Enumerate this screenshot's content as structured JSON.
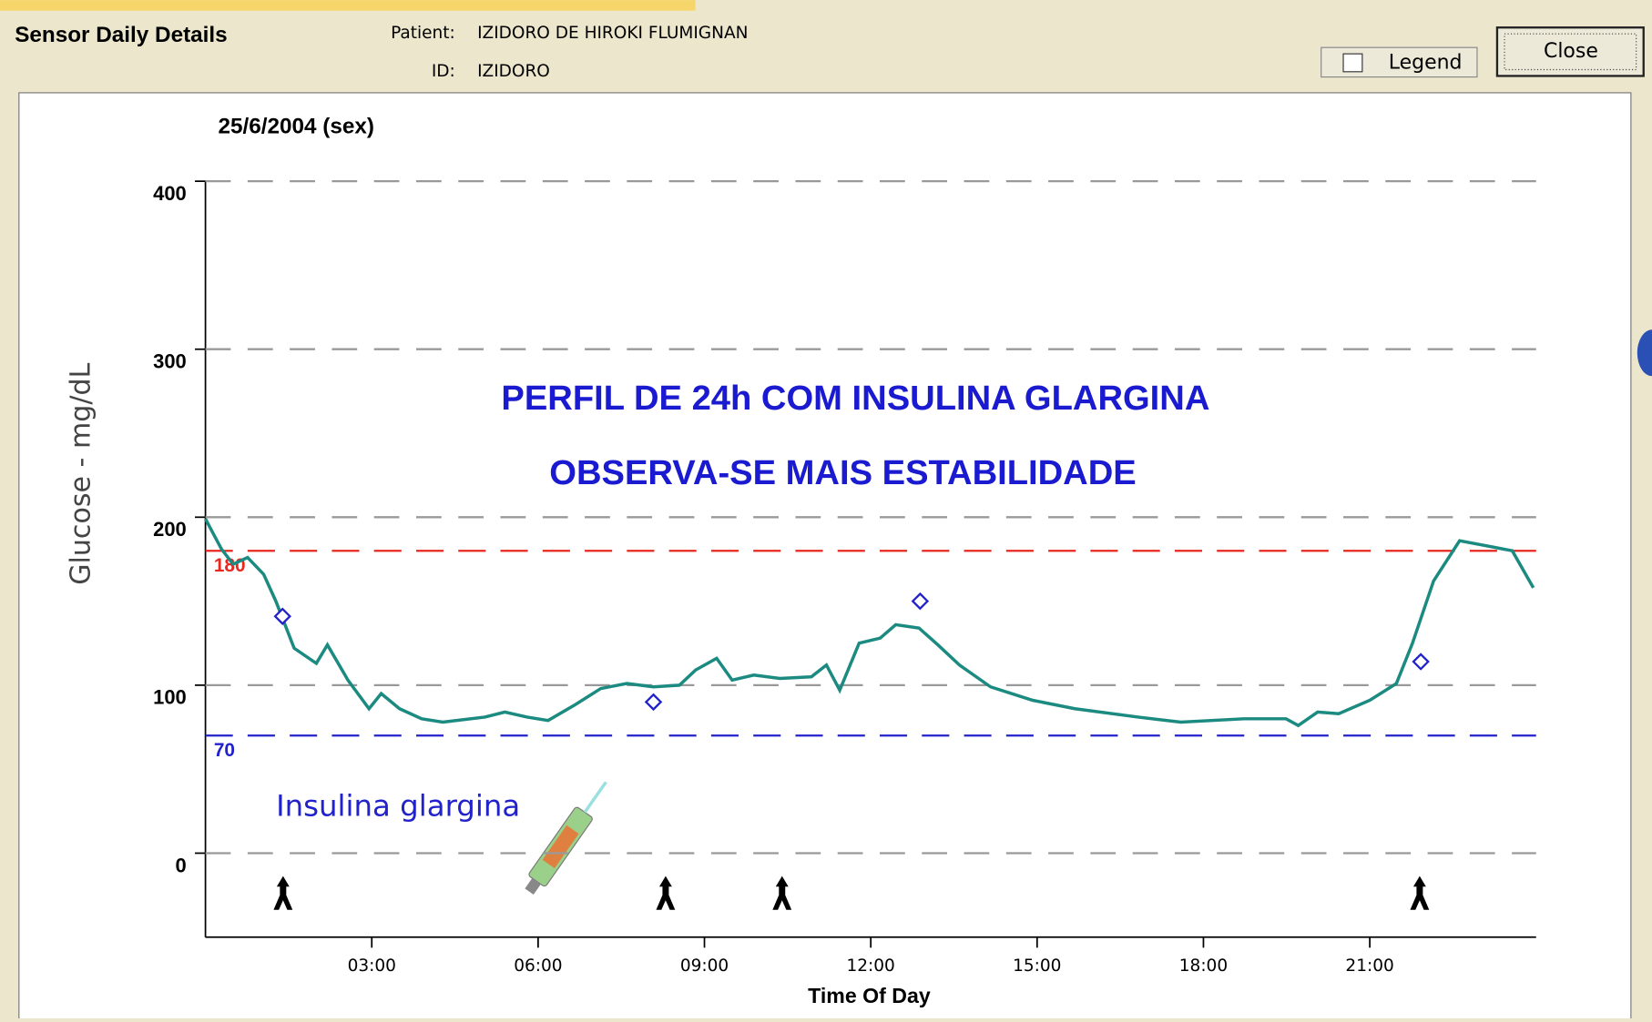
{
  "window": {
    "title": "Sensor Daily Details",
    "patient_label": "Patient:",
    "patient": "IZIDORO DE HIROKI FLUMIGNAN",
    "id_label": "ID:",
    "id": "IZIDORO",
    "legend_button": "Legend",
    "close_button": "Close"
  },
  "chart_data": {
    "type": "line",
    "title": "25/6/2004 (sex)",
    "x_label": "Time Of Day",
    "y_label": "Glucose - mg/dL",
    "annotations": [
      "PERFIL DE 24h COM INSULINA GLARGINA",
      "OBSERVA-SE MAIS ESTABILIDADE",
      "Insulina glargina"
    ],
    "xlim": [
      0,
      24
    ],
    "xticks": [
      {
        "value": 3,
        "label": "03:00"
      },
      {
        "value": 6,
        "label": "06:00"
      },
      {
        "value": 9,
        "label": "09:00"
      },
      {
        "value": 12,
        "label": "12:00"
      },
      {
        "value": 15,
        "label": "15:00"
      },
      {
        "value": 18,
        "label": "18:00"
      },
      {
        "value": 21,
        "label": "21:00"
      }
    ],
    "ylim": [
      -50,
      400
    ],
    "yticks": [
      0,
      100,
      200,
      300,
      400
    ],
    "grid": true,
    "color": "#1b8a80",
    "x": [
      0,
      0.29,
      0.5,
      0.76,
      1.05,
      1.27,
      1.6,
      2.0,
      2.2,
      2.57,
      2.95,
      3.17,
      3.5,
      3.9,
      4.28,
      5.04,
      5.4,
      5.8,
      6.18,
      6.65,
      7.13,
      7.6,
      8.08,
      8.55,
      8.84,
      9.22,
      9.5,
      9.89,
      10.36,
      10.93,
      11.2,
      11.44,
      11.79,
      12.17,
      12.45,
      12.87,
      13.21,
      13.6,
      14.16,
      14.92,
      15.68,
      16.82,
      17.59,
      18.73,
      19.49,
      19.71,
      20.06,
      20.44,
      21.0,
      21.48,
      21.77,
      22.15,
      22.62,
      23.1,
      23.57,
      23.95
    ],
    "values": [
      199,
      181,
      172,
      176,
      166,
      150,
      122,
      113,
      124,
      103,
      86,
      95,
      86,
      80,
      78,
      81,
      84,
      81,
      79,
      88,
      98,
      101,
      99,
      100,
      109,
      116,
      103,
      106,
      104,
      105,
      112,
      97,
      125,
      128,
      136,
      134,
      124,
      112,
      99,
      91,
      86,
      81,
      78,
      80,
      80,
      76,
      84,
      83,
      91,
      101,
      125,
      162,
      186,
      183,
      180,
      158
    ],
    "meter": {
      "color": "#2222cc",
      "x": [
        1.39,
        8.08,
        12.89,
        21.92
      ],
      "values": [
        141,
        90,
        150,
        114
      ]
    },
    "event_markers": [
      1.4,
      8.3,
      10.4,
      21.9
    ],
    "thresholds": [
      {
        "value": 180,
        "color": "#e8281e"
      },
      {
        "value": 70,
        "color": "#2222cc"
      }
    ]
  }
}
